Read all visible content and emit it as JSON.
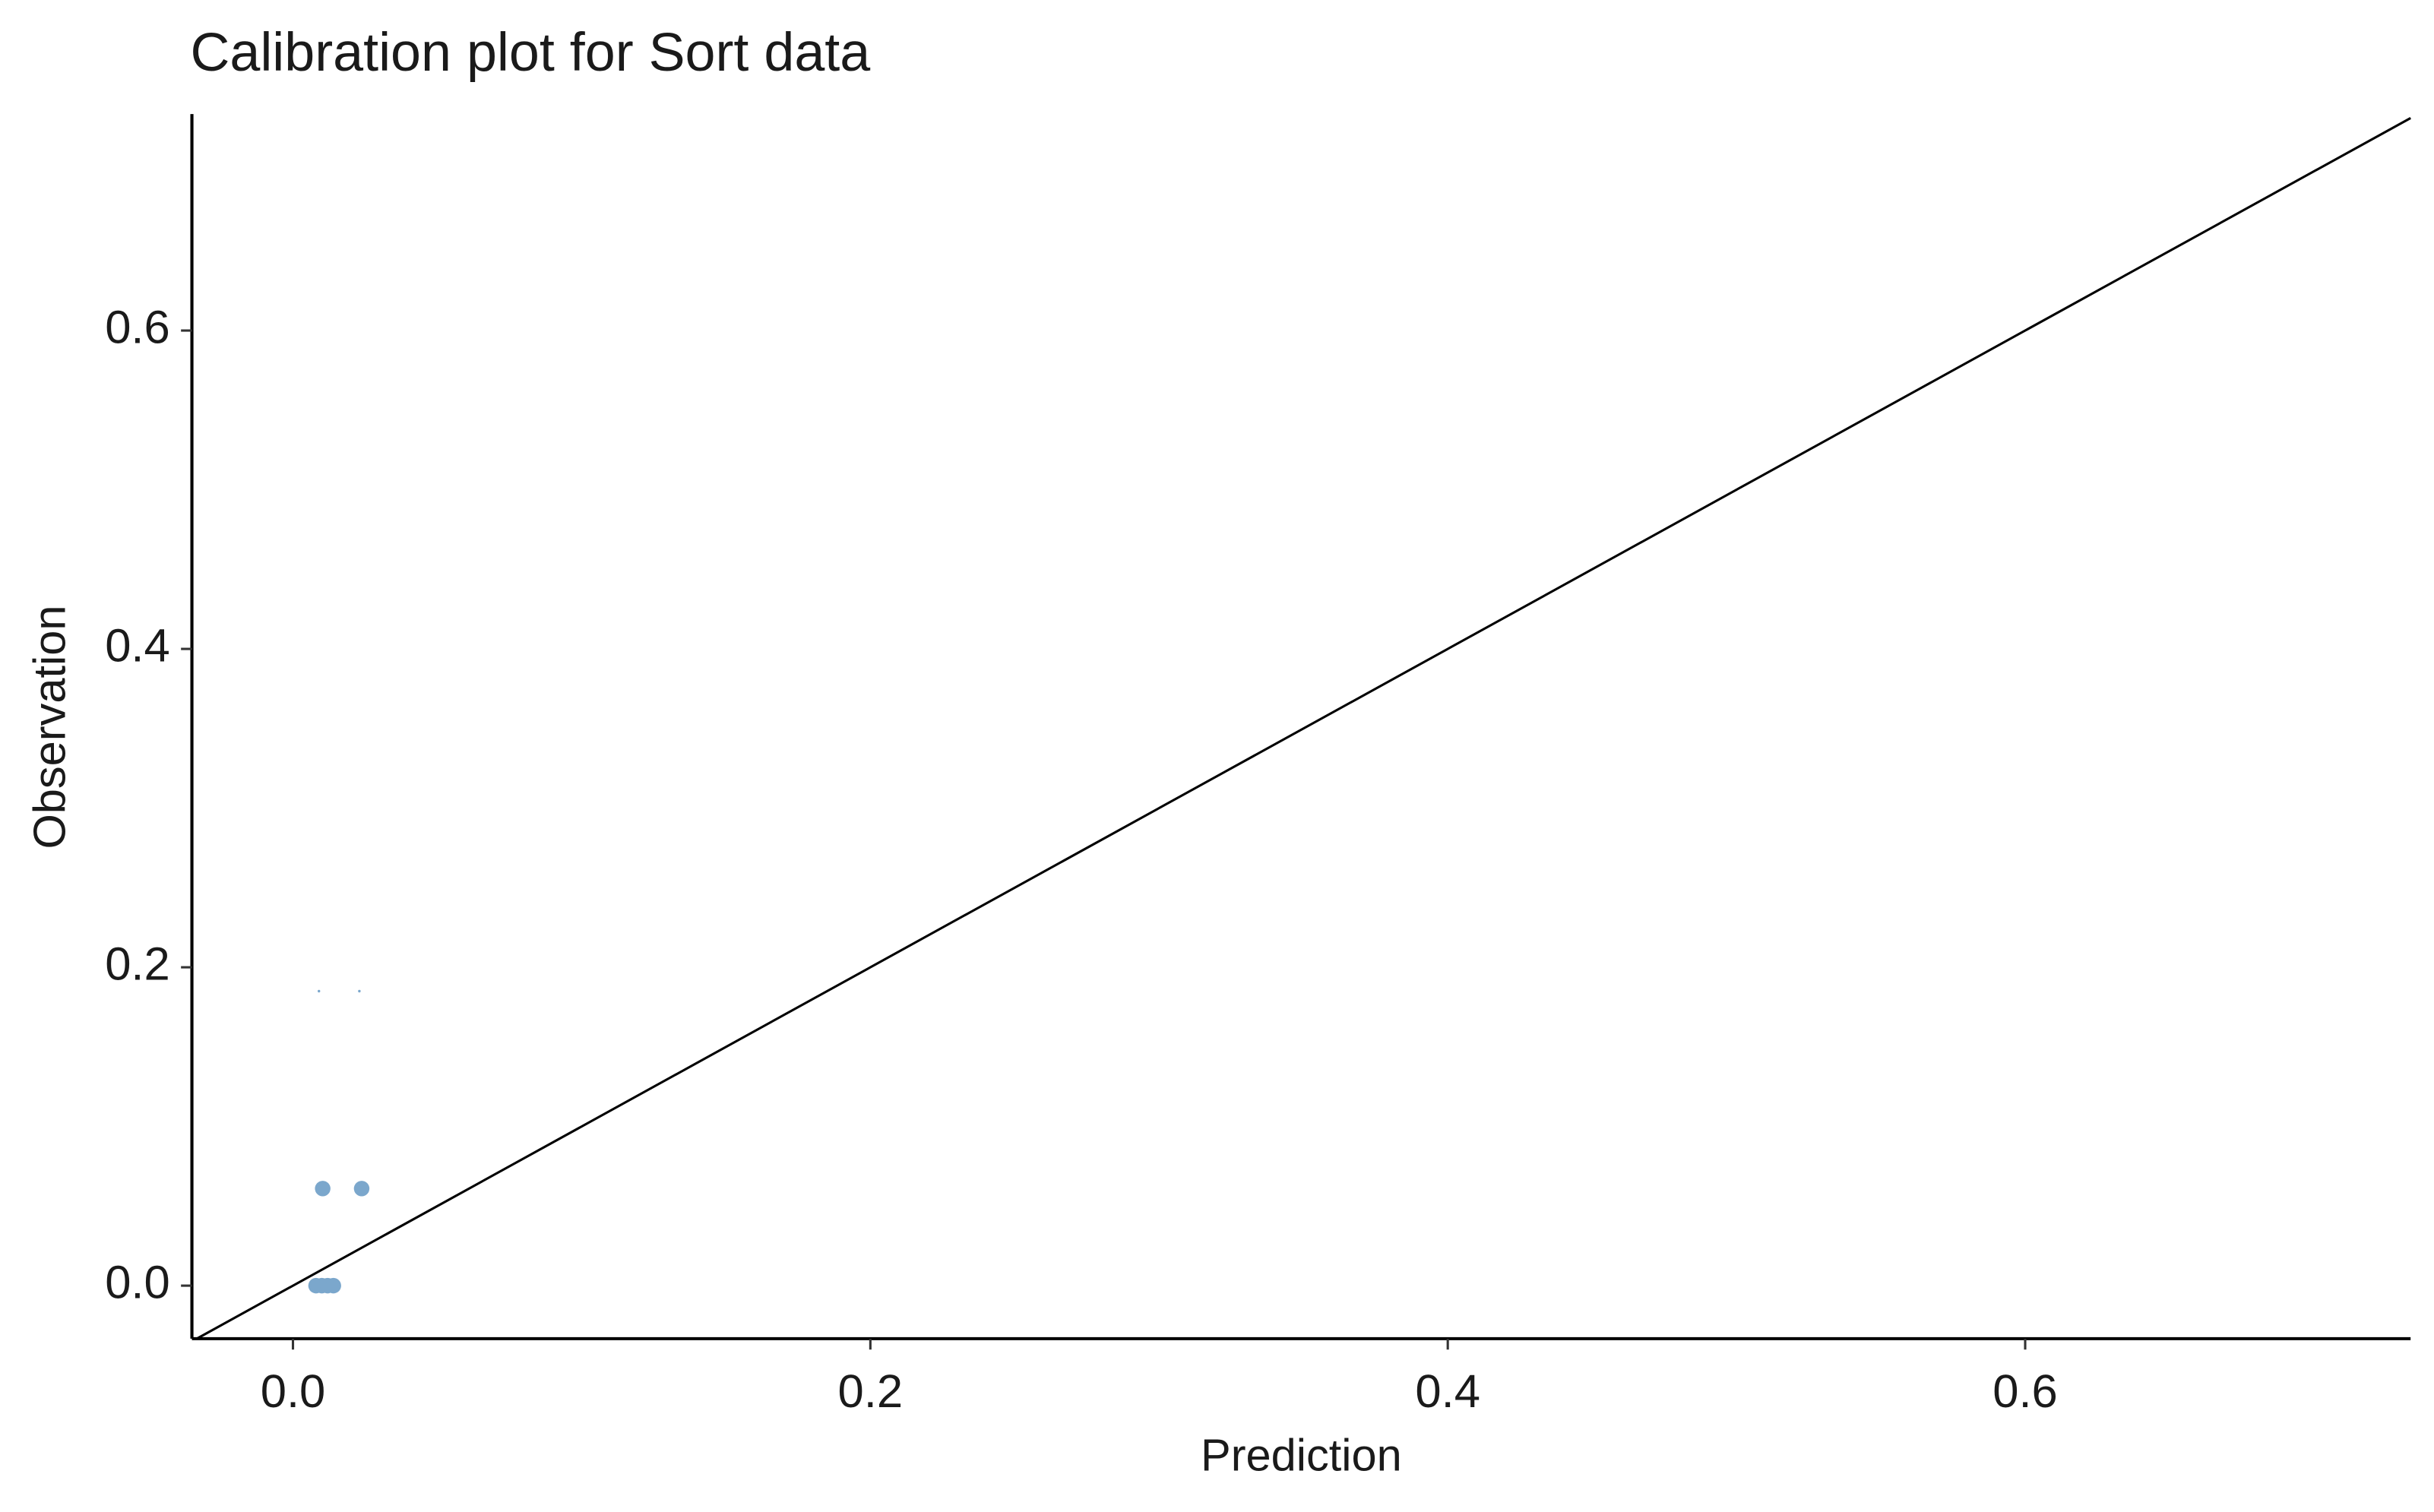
{
  "chart_data": {
    "type": "scatter",
    "title": "Calibration plot for Sort data",
    "x_label": "Prediction",
    "y_label": "Observation",
    "series": [
      {
        "color": "#7ba7cc",
        "marker_size": 6,
        "x": [
          0.0103,
          0.0238,
          0.008,
          0.01,
          0.012,
          0.014
        ],
        "values": [
          0.061,
          0.061,
          0,
          0,
          0,
          0
        ]
      },
      {
        "color": "#7ba7cc",
        "marker_size": 1,
        "x": [
          0.009,
          0.023
        ],
        "values": [
          0.185,
          0.185
        ]
      }
    ],
    "xlim": [
      -0.035,
      0.7335
    ],
    "ylim": [
      -0.0333,
      0.736
    ],
    "xticks": [
      {
        "value": 0,
        "label": "0.0"
      },
      0.2,
      0.4,
      0.6
    ],
    "yticks": [
      {
        "value": 0,
        "label": "0.0"
      },
      0.2,
      0.4,
      0.6
    ],
    "diagonal": true,
    "grid": false
  }
}
